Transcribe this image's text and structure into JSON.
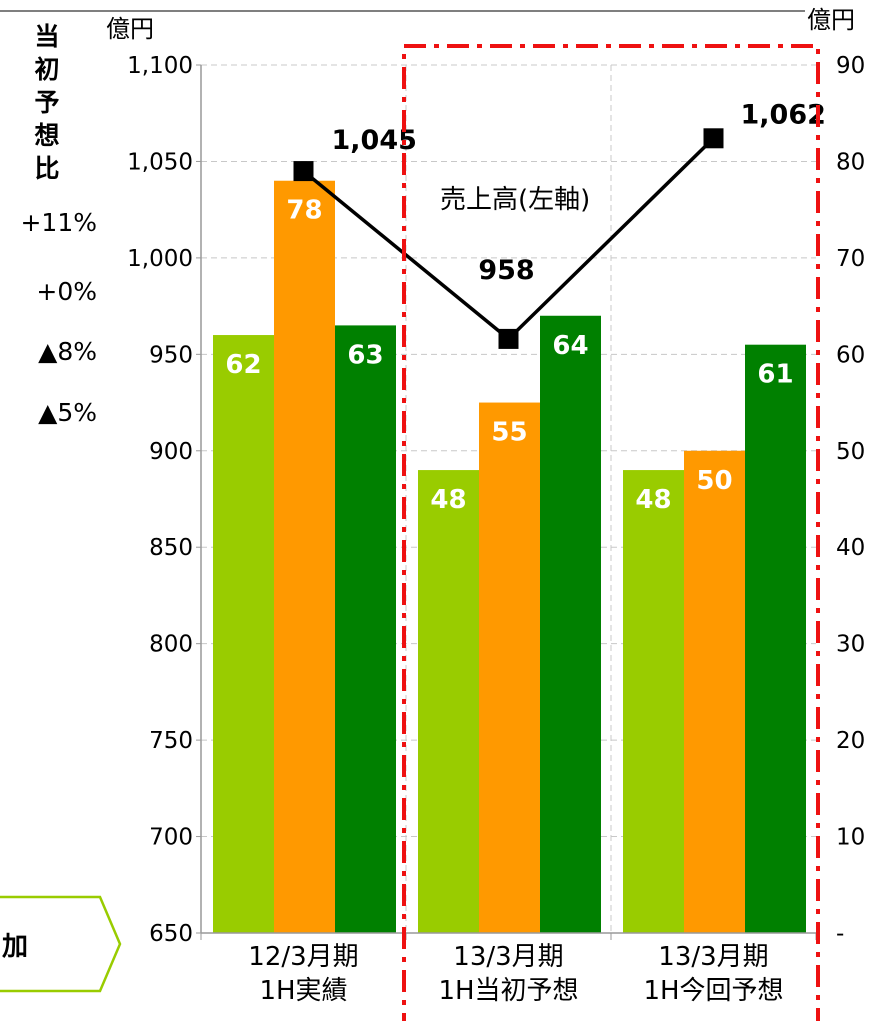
{
  "chart_data": {
    "type": "bar",
    "categories": [
      [
        "12/3月期",
        "1H実績"
      ],
      [
        "13/3月期",
        "1H当初予想"
      ],
      [
        "13/3月期",
        "1H今回予想"
      ]
    ],
    "bar_series": [
      {
        "values": [
          62,
          48,
          48
        ],
        "color": "#99cc00"
      },
      {
        "values": [
          78,
          55,
          50
        ],
        "color": "#ff9900"
      },
      {
        "values": [
          63,
          64,
          61
        ],
        "color": "#008000"
      }
    ],
    "line_series": {
      "name": "売上高(左軸)",
      "values": [
        1045,
        958,
        1062
      ],
      "labels": [
        "1,045",
        "958",
        "1,062"
      ],
      "color": "#000000",
      "marker": "square"
    },
    "left_axis": {
      "unit": "億円",
      "range": [
        650,
        1100
      ],
      "ticks": [
        "650",
        "700",
        "750",
        "800",
        "850",
        "900",
        "950",
        "1,000",
        "1,050",
        "1,100"
      ]
    },
    "right_axis": {
      "unit": "億円",
      "range": [
        0,
        90
      ],
      "ticks": [
        "-",
        "10",
        "20",
        "30",
        "40",
        "50",
        "60",
        "70",
        "80",
        "90"
      ]
    },
    "grid": true,
    "highlight_box": {
      "style": "dash-dot",
      "color": "#ee1111",
      "covers_categories": [
        1,
        2
      ]
    }
  },
  "side_panel": {
    "heading_chars": [
      "当",
      "初",
      "予",
      "想",
      "比"
    ],
    "items": [
      "+11%",
      "+0%",
      "▲8%",
      "▲5%"
    ]
  },
  "corner_tag": {
    "text": "加",
    "border_color": "#99cc00"
  }
}
